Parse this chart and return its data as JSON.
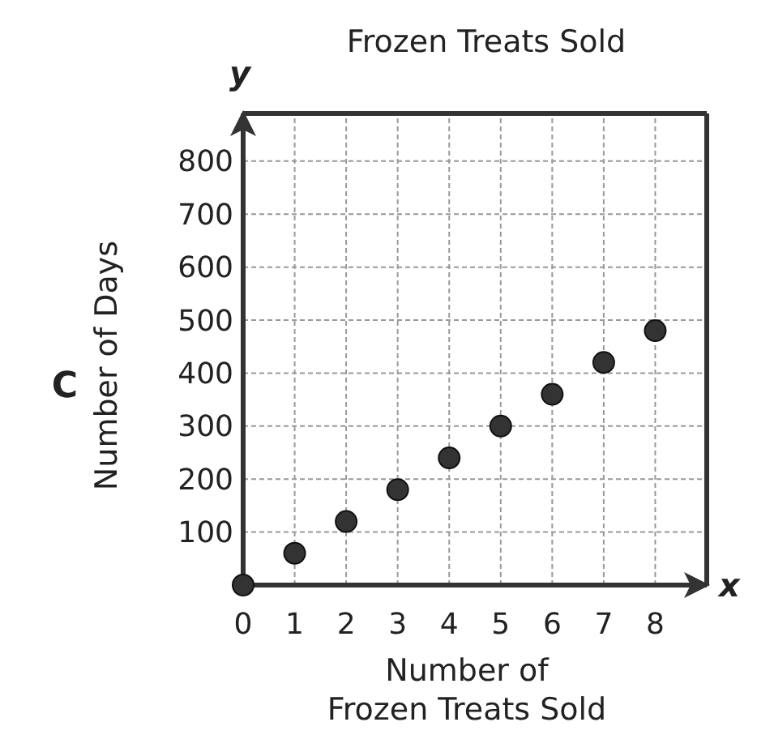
{
  "chart_data": {
    "type": "scatter",
    "title": "Frozen Treats Sold",
    "xlabel": "Number of Frozen Treats Sold",
    "ylabel": "Number of Days",
    "annotations": [
      "C",
      "x",
      "y"
    ],
    "x": [
      0,
      1,
      2,
      3,
      4,
      5,
      6,
      7,
      8
    ],
    "values": [
      0,
      60,
      120,
      180,
      240,
      300,
      360,
      420,
      480
    ],
    "color": "#333333",
    "marker": "circle",
    "xlim": [
      0,
      9
    ],
    "xticks": [
      0,
      1,
      2,
      3,
      4,
      5,
      6,
      7,
      8
    ],
    "ylim": [
      0,
      890
    ],
    "yticks": [
      100,
      200,
      300,
      400,
      500,
      600,
      700,
      800
    ],
    "grid": true
  }
}
